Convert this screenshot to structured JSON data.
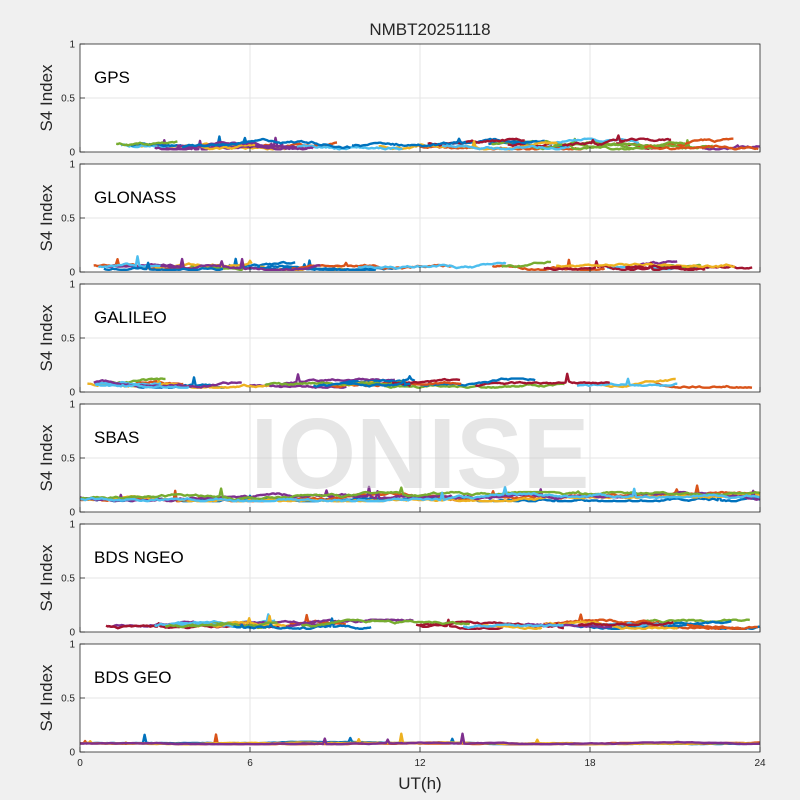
{
  "chart_data": {
    "type": "line",
    "title": "NMBT20251118",
    "watermark": "IONISE",
    "xlabel": "UT(h)",
    "ylabel": "S4 Index",
    "xlim": [
      0,
      24
    ],
    "ylim": [
      0,
      1
    ],
    "xticks": [
      0,
      6,
      12,
      18,
      24
    ],
    "yticks": [
      0,
      0.5,
      1
    ],
    "ytick_labels": [
      "0",
      "0.5",
      "1"
    ],
    "grid": true,
    "series_colors": [
      "#0072BD",
      "#D95319",
      "#EDB120",
      "#7E2F8E",
      "#77AC30",
      "#4DBEEE",
      "#A2142F"
    ],
    "panels": [
      {
        "name": "GPS",
        "base": 0.06,
        "spread": 0.035,
        "tracks": 30
      },
      {
        "name": "GLONASS",
        "base": 0.05,
        "spread": 0.03,
        "tracks": 22
      },
      {
        "name": "GALILEO",
        "base": 0.07,
        "spread": 0.03,
        "tracks": 22
      },
      {
        "name": "SBAS",
        "base": 0.13,
        "spread": 0.03,
        "tracks": 6
      },
      {
        "name": "BDS NGEO",
        "base": 0.06,
        "spread": 0.03,
        "tracks": 28
      },
      {
        "name": "BDS GEO",
        "base": 0.08,
        "spread": 0.008,
        "tracks": 4
      }
    ]
  }
}
